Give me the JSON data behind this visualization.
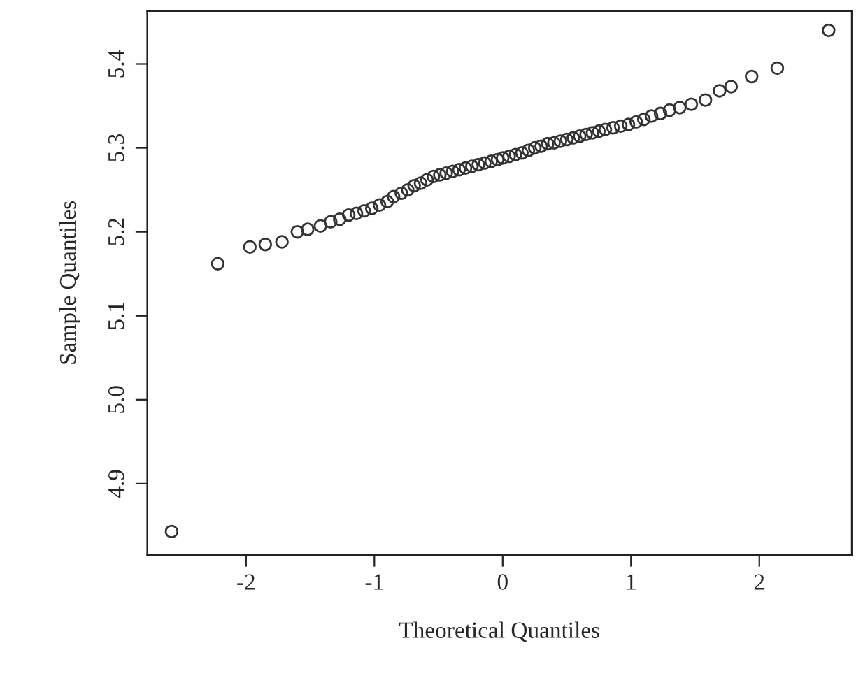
{
  "chart_data": {
    "type": "scatter",
    "xlabel": "Theoretical Quantiles",
    "ylabel": "Sample Quantiles",
    "x": [
      -2.58,
      -2.22,
      -1.97,
      -1.85,
      -1.72,
      -1.6,
      -1.52,
      -1.42,
      -1.34,
      -1.27,
      -1.2,
      -1.14,
      -1.08,
      -1.02,
      -0.96,
      -0.9,
      -0.85,
      -0.79,
      -0.74,
      -0.69,
      -0.64,
      -0.59,
      -0.54,
      -0.49,
      -0.44,
      -0.39,
      -0.34,
      -0.29,
      -0.24,
      -0.19,
      -0.14,
      -0.09,
      -0.04,
      0.0,
      0.05,
      0.1,
      0.15,
      0.2,
      0.25,
      0.3,
      0.35,
      0.4,
      0.45,
      0.5,
      0.55,
      0.6,
      0.65,
      0.7,
      0.75,
      0.8,
      0.86,
      0.92,
      0.98,
      1.04,
      1.1,
      1.16,
      1.23,
      1.3,
      1.38,
      1.47,
      1.58,
      1.69,
      1.78,
      1.94,
      2.14,
      2.54
    ],
    "series": [
      {
        "color": "#333333",
        "values": [
          4.843,
          5.162,
          5.182,
          5.185,
          5.188,
          5.2,
          5.203,
          5.207,
          5.212,
          5.215,
          5.22,
          5.222,
          5.225,
          5.228,
          5.232,
          5.236,
          5.242,
          5.246,
          5.25,
          5.255,
          5.258,
          5.262,
          5.266,
          5.268,
          5.27,
          5.272,
          5.274,
          5.276,
          5.278,
          5.28,
          5.282,
          5.284,
          5.286,
          5.288,
          5.29,
          5.292,
          5.294,
          5.297,
          5.3,
          5.302,
          5.305,
          5.306,
          5.308,
          5.31,
          5.312,
          5.314,
          5.316,
          5.318,
          5.32,
          5.322,
          5.324,
          5.326,
          5.328,
          5.331,
          5.334,
          5.338,
          5.341,
          5.345,
          5.348,
          5.352,
          5.357,
          5.368,
          5.373,
          5.385,
          5.395,
          5.44
        ]
      }
    ],
    "xlim": [
      -2.77,
      2.72
    ],
    "ylim": [
      4.815,
      5.463
    ],
    "xticks": [
      -2,
      -1,
      0,
      1,
      2
    ],
    "yticks": [
      4.9,
      {
        "value": 5.0,
        "label": "5.0"
      },
      5.1,
      5.2,
      5.3,
      5.4
    ],
    "marker": "circle",
    "grid": false,
    "legend": false
  }
}
